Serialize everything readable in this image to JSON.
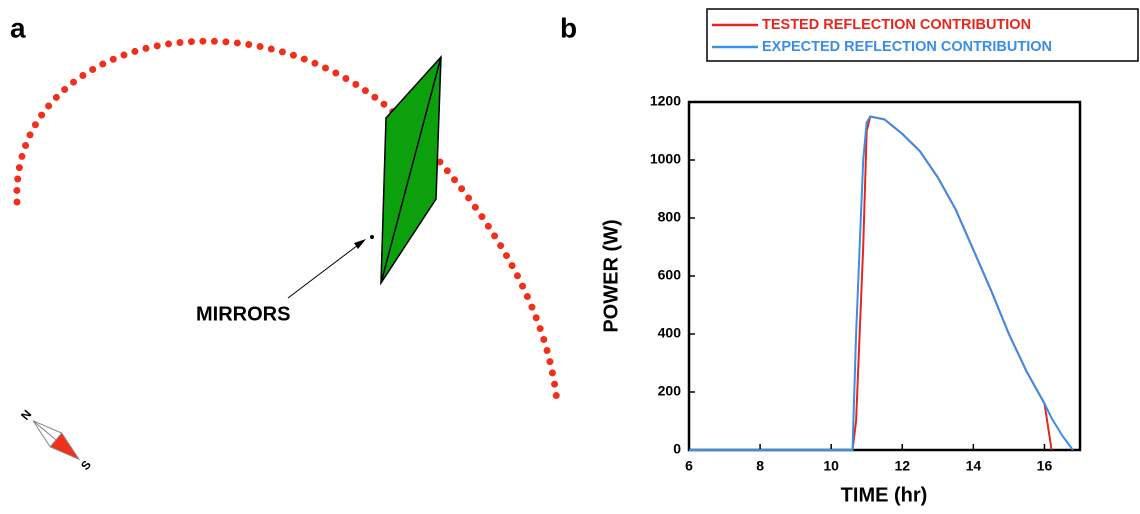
{
  "panel_labels": [
    "a",
    "b"
  ],
  "diagram": {
    "label": "MIRRORS",
    "compass": [
      "N",
      "S"
    ]
  },
  "chart_data": {
    "type": "line",
    "xlabel": "TIME (hr)",
    "ylabel": "POWER (W)",
    "x": [
      6,
      10.6,
      10.7,
      10.9,
      11.0,
      11.1,
      11.5,
      12,
      12.5,
      13,
      13.5,
      14,
      14.5,
      15,
      15.5,
      16,
      16.2,
      16.5,
      16.8
    ],
    "series": [
      {
        "name": "TESTED REFLECTION CONTRIBUTION",
        "color": "#e8261c",
        "values": [
          0,
          0,
          100,
          700,
          1100,
          1150,
          1140,
          1090,
          1030,
          940,
          830,
          690,
          550,
          400,
          270,
          160,
          0,
          null,
          null
        ]
      },
      {
        "name": "EXPECTED REFLECTION CONTRIBUTION",
        "color": "#3b8ee8",
        "values": [
          0,
          0,
          400,
          1000,
          1130,
          1150,
          1140,
          1090,
          1030,
          940,
          830,
          690,
          550,
          400,
          270,
          160,
          110,
          50,
          0
        ]
      }
    ],
    "xlim": [
      6,
      17
    ],
    "xticks": [
      6,
      8,
      10,
      12,
      14,
      16
    ],
    "ylim": [
      0,
      1200
    ],
    "yticks": [
      0,
      200,
      400,
      600,
      800,
      1000,
      1200
    ],
    "legend": "top-right",
    "grid": false
  }
}
